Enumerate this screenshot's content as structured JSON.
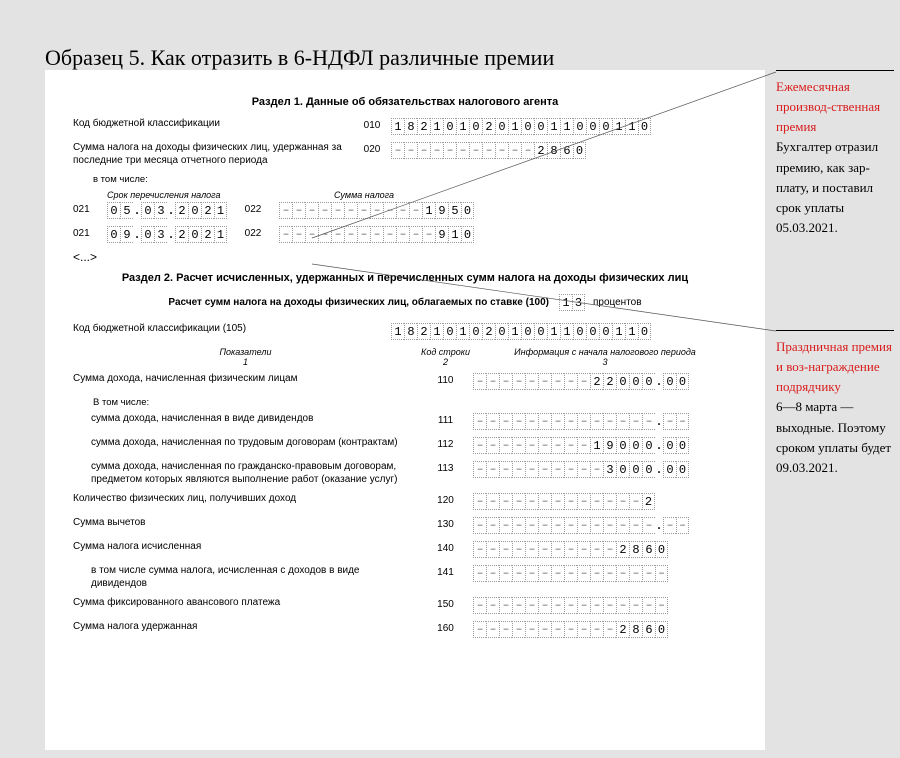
{
  "title": "Образец 5. Как отразить в 6-НДФЛ различные премии",
  "section1": {
    "heading": "Раздел 1. Данные об обязательствах налогового агента",
    "row010": {
      "label": "Код бюджетной классификации",
      "code": "010",
      "digits": [
        "1",
        "8",
        "2",
        "1",
        "0",
        "1",
        "0",
        "2",
        "0",
        "1",
        "0",
        "0",
        "1",
        "1",
        "0",
        "0",
        "0",
        "1",
        "1",
        "0"
      ]
    },
    "row020": {
      "label": "Сумма налога на доходы физических лиц, удержанная за последние три месяца отчетного периода",
      "code": "020",
      "digits15": [
        "",
        "",
        "",
        "",
        "",
        "",
        "",
        "",
        "",
        "",
        "",
        "2",
        "8",
        "6",
        "0"
      ]
    },
    "subnote": "в том числе:",
    "dateHead": "Срок перечисления налога",
    "sumHead": "Сумма налога",
    "line1": {
      "c021": "021",
      "date": [
        "0",
        "5",
        "0",
        "3",
        "2",
        "0",
        "2",
        "1"
      ],
      "c022": "022",
      "sum15": [
        "",
        "",
        "",
        "",
        "",
        "",
        "",
        "",
        "",
        "",
        "",
        "1",
        "9",
        "5",
        "0"
      ]
    },
    "line2": {
      "c021": "021",
      "date": [
        "0",
        "9",
        "0",
        "3",
        "2",
        "0",
        "2",
        "1"
      ],
      "c022": "022",
      "sum15": [
        "",
        "",
        "",
        "",
        "",
        "",
        "",
        "",
        "",
        "",
        "",
        "",
        "9",
        "1",
        "0"
      ]
    },
    "ellipsis": "<...>"
  },
  "section2": {
    "heading": "Раздел 2. Расчет исчисленных, удержанных и перечисленных сумм налога на доходы физических лиц",
    "rateLine": {
      "label": "Расчет сумм налога на доходы физических лиц, облагаемых по ставке (100)",
      "rate": [
        "1",
        "3"
      ],
      "suffix": "процентов"
    },
    "row105": {
      "label": "Код бюджетной классификации  (105)",
      "digits": [
        "1",
        "8",
        "2",
        "1",
        "0",
        "1",
        "0",
        "2",
        "0",
        "1",
        "0",
        "0",
        "1",
        "1",
        "0",
        "0",
        "0",
        "1",
        "1",
        "0"
      ]
    },
    "colHeads": {
      "c1": "Показатели",
      "c1n": "1",
      "c2": "Код строки",
      "c2n": "2",
      "c3": "Информация с начала налогового периода",
      "c3n": "3"
    },
    "rows": [
      {
        "label": "Сумма дохода, начисленная физическим лицам",
        "code": "110",
        "int": [
          "",
          "",
          "",
          "",
          "",
          "",
          "",
          "",
          "",
          "2",
          "2",
          "0",
          "0",
          "0"
        ],
        "frac": [
          "0",
          "0"
        ]
      },
      {
        "label": "В том числе:",
        "isNote": true
      },
      {
        "label": "сумма дохода, начисленная в виде дивидендов",
        "code": "111",
        "indent": true,
        "int": [
          "",
          "",
          "",
          "",
          "",
          "",
          "",
          "",
          "",
          "",
          "",
          "",
          "",
          ""
        ],
        "frac": [
          "",
          ""
        ]
      },
      {
        "label": "сумма дохода, начисленная по трудовым договорам (контрактам)",
        "code": "112",
        "indent": true,
        "int": [
          "",
          "",
          "",
          "",
          "",
          "",
          "",
          "",
          "",
          "1",
          "9",
          "0",
          "0",
          "0"
        ],
        "frac": [
          "0",
          "0"
        ]
      },
      {
        "label": "сумма дохода, начисленная по гражданско-правовым договорам, предметом которых являются выполнение работ (оказание услуг)",
        "code": "113",
        "indent": true,
        "int": [
          "",
          "",
          "",
          "",
          "",
          "",
          "",
          "",
          "",
          "",
          "3",
          "0",
          "0",
          "0"
        ],
        "frac": [
          "0",
          "0"
        ]
      },
      {
        "label": "Количество физических лиц, получивших доход",
        "code": "120",
        "int": [
          "",
          "",
          "",
          "",
          "",
          "",
          "",
          "",
          "",
          "",
          "",
          "",
          "",
          "2"
        ]
      },
      {
        "label": "Сумма вычетов",
        "code": "130",
        "int": [
          "",
          "",
          "",
          "",
          "",
          "",
          "",
          "",
          "",
          "",
          "",
          "",
          "",
          ""
        ],
        "frac": [
          "",
          ""
        ]
      },
      {
        "label": "Сумма налога исчисленная",
        "code": "140",
        "int": [
          "",
          "",
          "",
          "",
          "",
          "",
          "",
          "",
          "",
          "",
          "",
          "2",
          "8",
          "6",
          "0"
        ]
      },
      {
        "label": "в том числе сумма налога, исчисленная с доходов в виде дивидендов",
        "code": "141",
        "indent": true,
        "int": [
          "",
          "",
          "",
          "",
          "",
          "",
          "",
          "",
          "",
          "",
          "",
          "",
          "",
          "",
          ""
        ]
      },
      {
        "label": "Сумма фиксированного авансового платежа",
        "code": "150",
        "int": [
          "",
          "",
          "",
          "",
          "",
          "",
          "",
          "",
          "",
          "",
          "",
          "",
          "",
          "",
          ""
        ]
      },
      {
        "label": "Сумма налога удержанная",
        "code": "160",
        "int": [
          "",
          "",
          "",
          "",
          "",
          "",
          "",
          "",
          "",
          "",
          "",
          "2",
          "8",
          "6",
          "0"
        ]
      }
    ]
  },
  "callouts": {
    "c1": {
      "title": "Ежемесячная производ-ственная премия",
      "body": "Бухгалтер отразил премию, как зар-плату, и поставил срок уплаты 05.03.2021."
    },
    "c2": {
      "title": "Праздничная премия и воз-награждение подрядчику",
      "body": "6—8 марта — выходные. Поэтому сроком уплаты будет 09.03.2021."
    }
  },
  "colors": {
    "accent": "#d91b1b",
    "pageBg": "#e3e3e3",
    "sheetBg": "#ffffff",
    "cellBorder": "#9a9a9a",
    "leader": "#555555"
  }
}
